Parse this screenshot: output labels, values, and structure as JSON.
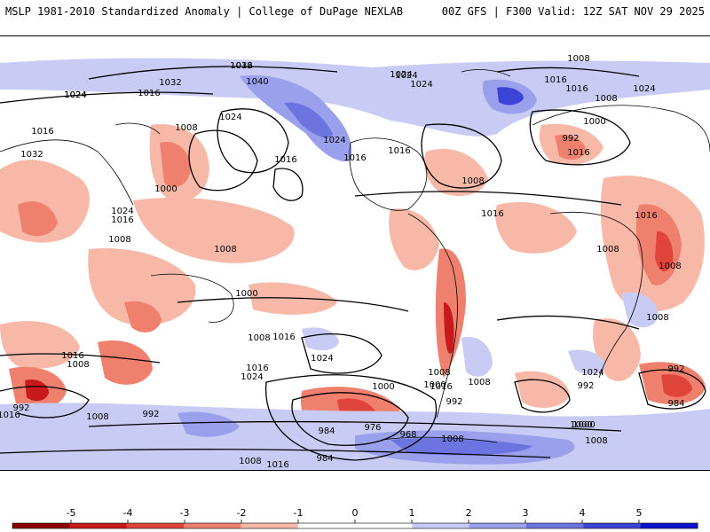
{
  "header": {
    "left_title": "MSLP 1981-2010 Standardized Anomaly | College of DuPage NEXLAB",
    "right_title": "00Z GFS | F300 Valid: 12Z SAT NOV 29 2025"
  },
  "colors": {
    "neg5": "#8b0000",
    "neg4": "#c81a1a",
    "neg3": "#e0453c",
    "neg2": "#f0806e",
    "neg1": "#f8b8a8",
    "zero": "#ffffff",
    "pos1": "#c8ccf4",
    "pos2": "#9aa0ec",
    "pos3": "#6c74e0",
    "pos4": "#3c44d8",
    "pos5": "#0a14c8"
  },
  "isobar_labels": [
    "1032",
    "1024",
    "1016",
    "1016",
    "1032",
    "1024",
    "1008",
    "1016",
    "1000",
    "1024",
    "1016",
    "1008",
    "1008",
    "1040",
    "1024",
    "1016",
    "1024",
    "1024",
    "1016",
    "1032",
    "1024",
    "1016",
    "1008",
    "1000",
    "992",
    "1016",
    "1008",
    "1024",
    "1016",
    "1008",
    "1016",
    "1008",
    "1008",
    "1016",
    "1008",
    "1000",
    "1008",
    "1016",
    "1024",
    "1016",
    "1008",
    "1016",
    "1024",
    "1016",
    "1008",
    "992",
    "1000",
    "984",
    "976",
    "968",
    "992",
    "1000",
    "1008",
    "1016",
    "1008",
    "992",
    "1000",
    "1008",
    "1024",
    "984",
    "992",
    "1008",
    "1000",
    "1016",
    "1008",
    "984",
    "992",
    "1016",
    "1024"
  ],
  "colorbar": {
    "ticks": [
      "-5",
      "-4",
      "-3",
      "-2",
      "-1",
      "0",
      "1",
      "2",
      "3",
      "4",
      "5"
    ]
  }
}
